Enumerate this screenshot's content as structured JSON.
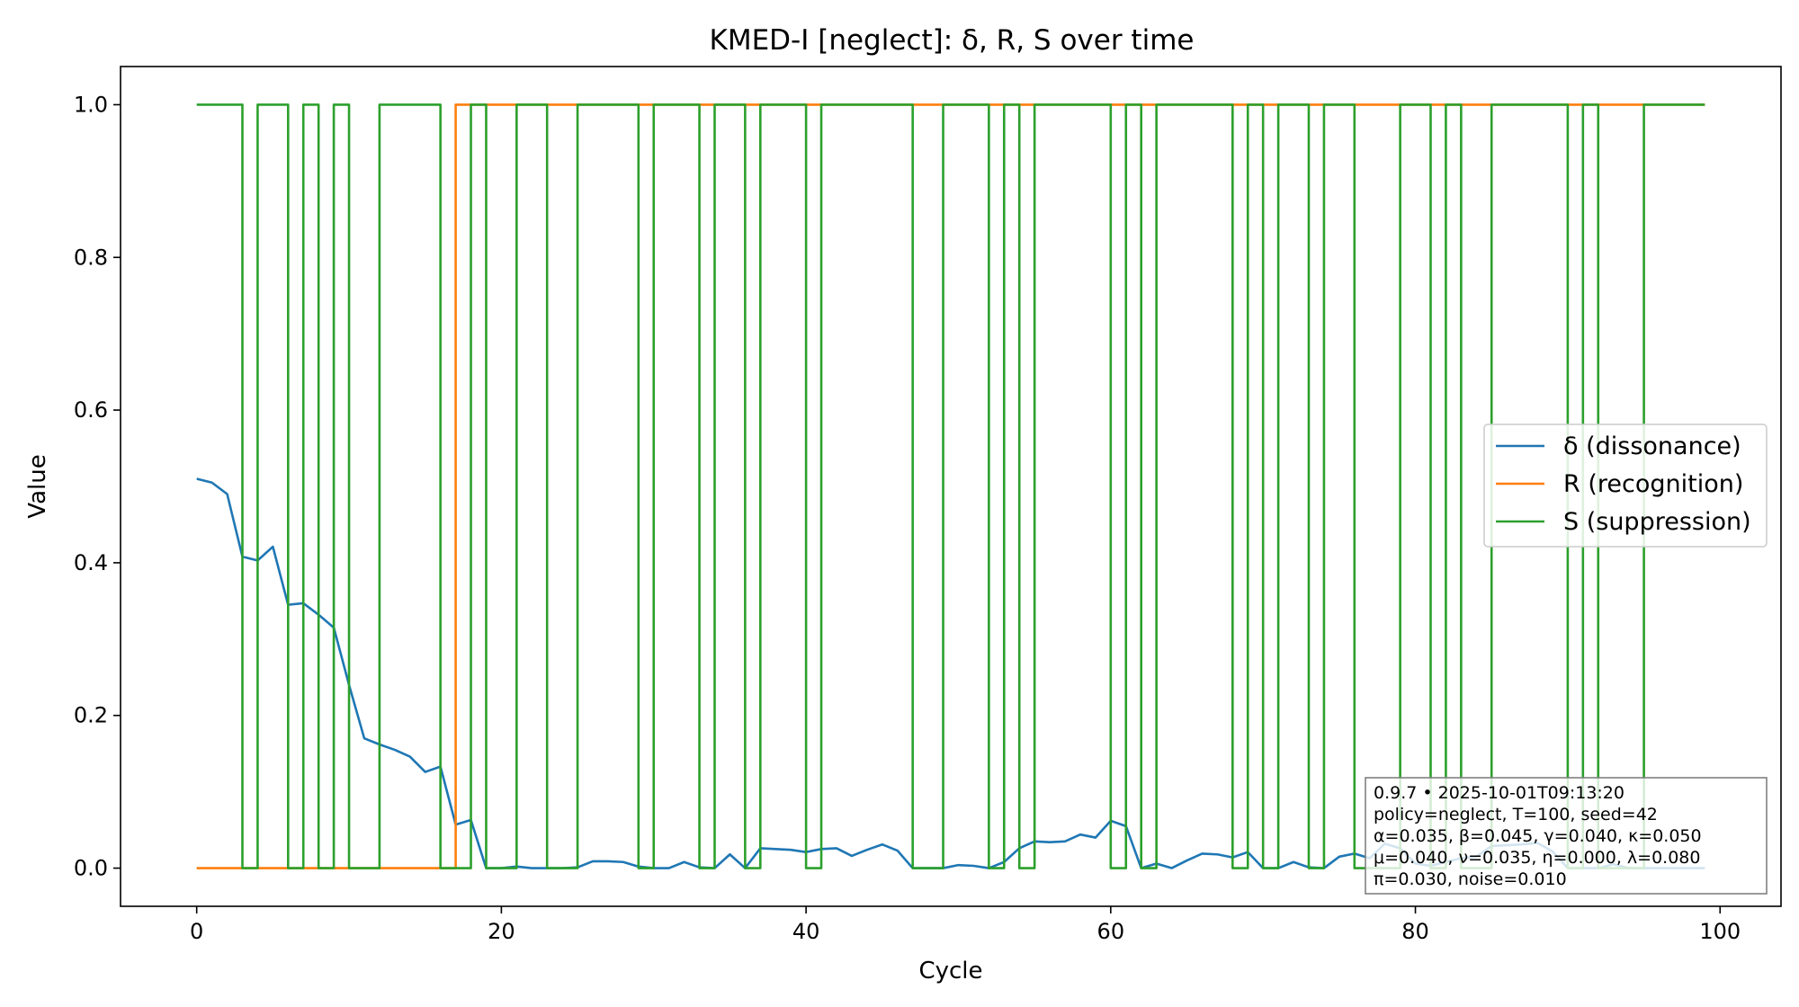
{
  "chart_data": {
    "type": "line",
    "title": "KMED-I [neglect]: δ, R, S over time",
    "xlabel": "Cycle",
    "ylabel": "Value",
    "xlim": [
      -5,
      104
    ],
    "ylim": [
      -0.05,
      1.05
    ],
    "xticks": [
      0,
      20,
      40,
      60,
      80,
      100
    ],
    "yticks": [
      0.0,
      0.2,
      0.4,
      0.6,
      0.8,
      1.0
    ],
    "xtick_labels": [
      "0",
      "20",
      "40",
      "60",
      "80",
      "100"
    ],
    "ytick_labels": [
      "0.0",
      "0.2",
      "0.4",
      "0.6",
      "0.8",
      "1.0"
    ],
    "grid": false,
    "legend_position": "center-right",
    "x": [
      0,
      1,
      2,
      3,
      4,
      5,
      6,
      7,
      8,
      9,
      10,
      11,
      12,
      13,
      14,
      15,
      16,
      17,
      18,
      19,
      20,
      21,
      22,
      23,
      24,
      25,
      26,
      27,
      28,
      29,
      30,
      31,
      32,
      33,
      34,
      35,
      36,
      37,
      38,
      39,
      40,
      41,
      42,
      43,
      44,
      45,
      46,
      47,
      48,
      49,
      50,
      51,
      52,
      53,
      54,
      55,
      56,
      57,
      58,
      59,
      60,
      61,
      62,
      63,
      64,
      65,
      66,
      67,
      68,
      69,
      70,
      71,
      72,
      73,
      74,
      75,
      76,
      77,
      78,
      79,
      80,
      81,
      82,
      83,
      84,
      85,
      86,
      87,
      88,
      89,
      90,
      91,
      92,
      93,
      94,
      95,
      96,
      97,
      98,
      99
    ],
    "series": [
      {
        "name": "δ (dissonance)",
        "color": "#1f77b4",
        "step": false,
        "values": [
          0.51,
          0.505,
          0.49,
          0.408,
          0.403,
          0.421,
          0.345,
          0.347,
          0.332,
          0.315,
          0.24,
          0.17,
          0.162,
          0.155,
          0.146,
          0.126,
          0.133,
          0.057,
          0.063,
          0.0,
          0.0,
          0.002,
          0.0,
          0.0,
          0.0,
          0.001,
          0.009,
          0.009,
          0.008,
          0.002,
          0.0,
          0.0,
          0.008,
          0.001,
          0.0,
          0.018,
          0.0,
          0.026,
          0.025,
          0.024,
          0.021,
          0.025,
          0.026,
          0.016,
          0.024,
          0.031,
          0.023,
          0.0,
          0.0,
          0.0,
          0.004,
          0.003,
          0.0,
          0.008,
          0.026,
          0.035,
          0.034,
          0.035,
          0.044,
          0.04,
          0.062,
          0.055,
          0.0,
          0.006,
          0.0,
          0.01,
          0.019,
          0.018,
          0.014,
          0.021,
          0.0,
          0.0,
          0.008,
          0.001,
          0.0,
          0.015,
          0.019,
          0.013,
          0.032,
          0.026,
          0.006,
          0.003,
          0.008,
          0.013,
          0.015,
          0.029,
          0.03,
          0.031,
          0.033,
          0.022,
          0.0,
          0.0,
          0.0,
          0.005,
          0.0,
          0.0,
          0.0,
          0.0,
          0.0,
          0.0
        ]
      },
      {
        "name": "R (recognition)",
        "color": "#ff7f0e",
        "step": true,
        "values": [
          0,
          0,
          0,
          0,
          0,
          0,
          0,
          0,
          0,
          0,
          0,
          0,
          0,
          0,
          0,
          0,
          0,
          1,
          1,
          1,
          1,
          1,
          1,
          1,
          1,
          1,
          1,
          1,
          1,
          1,
          1,
          1,
          1,
          1,
          1,
          1,
          1,
          1,
          1,
          1,
          1,
          1,
          1,
          1,
          1,
          1,
          1,
          1,
          1,
          1,
          1,
          1,
          1,
          1,
          1,
          1,
          1,
          1,
          1,
          1,
          1,
          1,
          1,
          1,
          1,
          1,
          1,
          1,
          1,
          1,
          1,
          1,
          1,
          1,
          1,
          1,
          1,
          1,
          1,
          1,
          1,
          1,
          1,
          1,
          1,
          1,
          1,
          1,
          1,
          1,
          1,
          1,
          1,
          1,
          1,
          1,
          1,
          1,
          1,
          1
        ]
      },
      {
        "name": "S (suppression)",
        "color": "#2ca02c",
        "step": true,
        "values": [
          1,
          1,
          1,
          0,
          1,
          1,
          0,
          1,
          0,
          1,
          0,
          0,
          1,
          1,
          1,
          1,
          0,
          0,
          1,
          0,
          0,
          1,
          1,
          0,
          0,
          1,
          1,
          1,
          1,
          0,
          1,
          1,
          1,
          0,
          1,
          1,
          0,
          1,
          1,
          1,
          0,
          1,
          1,
          1,
          1,
          1,
          1,
          0,
          0,
          1,
          1,
          1,
          0,
          1,
          0,
          1,
          1,
          1,
          1,
          1,
          0,
          1,
          0,
          1,
          1,
          1,
          1,
          1,
          0,
          1,
          0,
          1,
          1,
          0,
          1,
          1,
          0,
          0,
          0,
          1,
          1,
          0,
          1,
          0,
          0,
          1,
          1,
          1,
          1,
          1,
          0,
          1,
          0,
          0,
          0,
          1,
          1,
          1,
          1,
          1
        ]
      }
    ],
    "annotation": [
      "0.9.7  •  2025-10-01T09:13:20",
      "policy=neglect, T=100, seed=42",
      "α=0.035, β=0.045, γ=0.040, κ=0.050",
      "μ=0.040, ν=0.035, η=0.000, λ=0.080",
      "π=0.030, noise=0.010"
    ]
  }
}
